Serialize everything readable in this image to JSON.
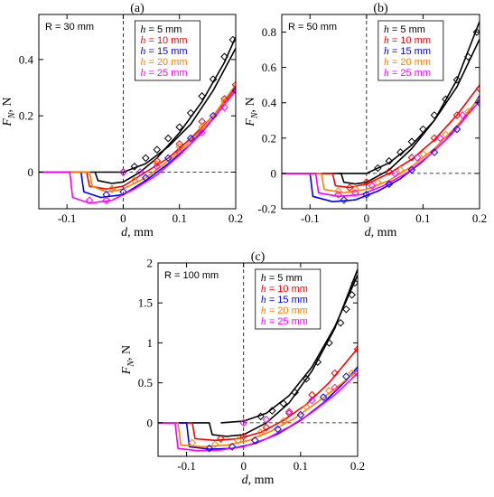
{
  "figure": {
    "width": 547,
    "height": 550
  },
  "x_axis": {
    "label_main": "d",
    "label_rest": ", mm",
    "ticks": [
      -0.1,
      0,
      0.1,
      0.2
    ],
    "tick_labels": [
      "-0.1",
      "0",
      "0.1",
      "0.2"
    ]
  },
  "y_axis": {
    "label_main": "F",
    "label_sub": "N",
    "label_rest": ", N"
  },
  "legend_entries": [
    {
      "var": "h",
      "text": " = 5 mm",
      "color": "#000000"
    },
    {
      "var": "h",
      "text": " = 10 mm",
      "color": "#ff0000"
    },
    {
      "var": "h",
      "text": " = 15 mm",
      "color": "#0000ff"
    },
    {
      "var": "h",
      "text": " = 20 mm",
      "color": "#ff8000"
    },
    {
      "var": "h",
      "text": " = 25 mm",
      "color": "#ff00ff"
    }
  ],
  "chart_data": [
    {
      "type": "line",
      "panel": "(a)",
      "annotation": "R = 30 mm",
      "xlim": [
        -0.15,
        0.2
      ],
      "ylim": [
        -0.13,
        0.56
      ],
      "yticks": [
        0,
        0.2,
        0.4
      ],
      "ytick_labels": [
        "0",
        "0.2",
        "0.4"
      ],
      "series": [
        {
          "name": "h = 5 mm",
          "color": "#000000",
          "kind": "model",
          "x": [
            -0.15,
            -0.05,
            -0.045,
            -0.02,
            0.0,
            0.03,
            0.06,
            0.1,
            0.14,
            0.18,
            0.2
          ],
          "y": [
            0,
            0,
            -0.03,
            -0.04,
            -0.035,
            0.0,
            0.05,
            0.14,
            0.25,
            0.39,
            0.48
          ]
        },
        {
          "name": "h = 5 mm",
          "color": "#000000",
          "kind": "model",
          "x": [
            -0.05,
            -0.02,
            0.0,
            0.04,
            0.08,
            0.12,
            0.16,
            0.2
          ],
          "y": [
            0,
            0,
            0.0,
            0.03,
            0.09,
            0.17,
            0.29,
            0.44
          ]
        },
        {
          "name": "h = 10 mm",
          "color": "#ff0000",
          "kind": "model",
          "x": [
            -0.15,
            -0.065,
            -0.06,
            -0.03,
            0.0,
            0.04,
            0.08,
            0.12,
            0.16,
            0.2
          ],
          "y": [
            0,
            0,
            -0.05,
            -0.06,
            -0.05,
            0.0,
            0.05,
            0.12,
            0.2,
            0.3
          ]
        },
        {
          "name": "h = 15 mm",
          "color": "#0000ff",
          "kind": "model",
          "x": [
            -0.15,
            -0.075,
            -0.07,
            -0.04,
            0.0,
            0.04,
            0.08,
            0.12,
            0.16,
            0.2
          ],
          "y": [
            0,
            0,
            -0.07,
            -0.09,
            -0.08,
            -0.03,
            0.03,
            0.1,
            0.19,
            0.29
          ]
        },
        {
          "name": "h = 20 mm",
          "color": "#ff8000",
          "kind": "model",
          "x": [
            -0.15,
            -0.06,
            -0.055,
            -0.03,
            0.0,
            0.04,
            0.08,
            0.12,
            0.16,
            0.2
          ],
          "y": [
            0,
            0,
            -0.05,
            -0.07,
            -0.06,
            -0.02,
            0.04,
            0.11,
            0.2,
            0.31
          ]
        },
        {
          "name": "h = 25 mm",
          "color": "#ff00ff",
          "kind": "model",
          "x": [
            -0.15,
            -0.095,
            -0.09,
            -0.06,
            -0.02,
            0.02,
            0.06,
            0.1,
            0.14,
            0.18,
            0.2
          ],
          "y": [
            0,
            0,
            -0.09,
            -0.11,
            -0.1,
            -0.06,
            -0.01,
            0.06,
            0.14,
            0.24,
            0.29
          ]
        },
        {
          "name": "h = 5 mm",
          "color": "#000000",
          "kind": "data",
          "x": [
            0.0,
            0.02,
            0.04,
            0.06,
            0.08,
            0.1,
            0.12,
            0.14,
            0.16,
            0.18,
            0.195
          ],
          "y": [
            0.0,
            0.02,
            0.05,
            0.08,
            0.12,
            0.16,
            0.21,
            0.27,
            0.33,
            0.41,
            0.47
          ]
        },
        {
          "name": "h = 10 mm",
          "color": "#ff0000",
          "kind": "data",
          "x": [
            -0.02,
            0.02,
            0.06,
            0.1,
            0.14,
            0.18,
            0.2
          ],
          "y": [
            -0.06,
            -0.03,
            0.04,
            0.1,
            0.18,
            0.26,
            0.31
          ]
        },
        {
          "name": "h = 15 mm",
          "color": "#0000ff",
          "kind": "data",
          "x": [
            -0.03,
            0.0,
            0.04,
            0.08,
            0.12,
            0.16,
            0.2
          ],
          "y": [
            -0.08,
            -0.07,
            -0.02,
            0.05,
            0.12,
            0.2,
            0.29
          ]
        },
        {
          "name": "h = 20 mm",
          "color": "#ff8000",
          "kind": "data",
          "x": [
            -0.02,
            0.02,
            0.06,
            0.1,
            0.14,
            0.18
          ],
          "y": [
            -0.06,
            -0.03,
            0.03,
            0.09,
            0.16,
            0.25
          ]
        },
        {
          "name": "h = 25 mm",
          "color": "#ff00ff",
          "kind": "data",
          "x": [
            -0.06,
            -0.03,
            0.0,
            0.03,
            0.06,
            0.1,
            0.14,
            0.18
          ],
          "y": [
            -0.1,
            -0.1,
            0.0,
            0.0,
            0.02,
            0.07,
            0.14,
            0.23
          ]
        }
      ]
    },
    {
      "type": "line",
      "panel": "(b)",
      "annotation": "R = 50 mm",
      "xlim": [
        -0.15,
        0.2
      ],
      "ylim": [
        -0.2,
        0.9
      ],
      "yticks": [
        -0.2,
        0,
        0.2,
        0.4,
        0.6,
        0.8
      ],
      "ytick_labels": [
        "-0.2",
        "0",
        "0.2",
        "0.4",
        "0.6",
        "0.8"
      ],
      "series": [
        {
          "name": "h = 5 mm",
          "color": "#000000",
          "kind": "model",
          "x": [
            -0.15,
            -0.045,
            -0.04,
            -0.02,
            0.0,
            0.04,
            0.08,
            0.12,
            0.16,
            0.2
          ],
          "y": [
            0,
            0,
            -0.05,
            -0.06,
            -0.05,
            0.02,
            0.14,
            0.3,
            0.53,
            0.86
          ]
        },
        {
          "name": "h = 5 mm",
          "color": "#000000",
          "kind": "model",
          "x": [
            -0.05,
            0.0,
            0.04,
            0.08,
            0.12,
            0.16,
            0.2
          ],
          "y": [
            0,
            0.0,
            0.06,
            0.16,
            0.3,
            0.49,
            0.76
          ]
        },
        {
          "name": "h = 10 mm",
          "color": "#ff0000",
          "kind": "model",
          "x": [
            -0.15,
            -0.06,
            -0.055,
            -0.03,
            0.0,
            0.04,
            0.08,
            0.12,
            0.16,
            0.2
          ],
          "y": [
            0,
            0,
            -0.07,
            -0.08,
            -0.06,
            0.0,
            0.08,
            0.19,
            0.33,
            0.5
          ]
        },
        {
          "name": "h = 15 mm",
          "color": "#0000ff",
          "kind": "model",
          "x": [
            -0.15,
            -0.1,
            -0.095,
            -0.06,
            -0.02,
            0.02,
            0.06,
            0.1,
            0.14,
            0.18,
            0.2
          ],
          "y": [
            0,
            0,
            -0.13,
            -0.16,
            -0.15,
            -0.1,
            -0.03,
            0.07,
            0.19,
            0.34,
            0.44
          ]
        },
        {
          "name": "h = 20 mm",
          "color": "#ff8000",
          "kind": "model",
          "x": [
            -0.15,
            -0.08,
            -0.075,
            -0.04,
            0.0,
            0.04,
            0.08,
            0.12,
            0.16,
            0.2
          ],
          "y": [
            0,
            0,
            -0.09,
            -0.11,
            -0.09,
            -0.04,
            0.04,
            0.14,
            0.27,
            0.43
          ]
        },
        {
          "name": "h = 25 mm",
          "color": "#ff00ff",
          "kind": "model",
          "x": [
            -0.15,
            -0.09,
            -0.085,
            -0.05,
            -0.01,
            0.03,
            0.07,
            0.11,
            0.15,
            0.2
          ],
          "y": [
            0,
            0,
            -0.11,
            -0.13,
            -0.12,
            -0.07,
            0.0,
            0.1,
            0.22,
            0.41
          ]
        },
        {
          "name": "h = 5 mm",
          "color": "#000000",
          "kind": "data",
          "x": [
            0.02,
            0.04,
            0.06,
            0.08,
            0.1,
            0.12,
            0.14,
            0.16,
            0.18,
            0.195
          ],
          "y": [
            0.03,
            0.07,
            0.12,
            0.18,
            0.25,
            0.33,
            0.42,
            0.53,
            0.66,
            0.8
          ]
        },
        {
          "name": "h = 10 mm",
          "color": "#ff0000",
          "kind": "data",
          "x": [
            -0.03,
            0.0,
            0.04,
            0.08,
            0.12,
            0.16,
            0.2
          ],
          "y": [
            -0.08,
            -0.05,
            0.01,
            0.09,
            0.2,
            0.33,
            0.48
          ]
        },
        {
          "name": "h = 15 mm",
          "color": "#0000ff",
          "kind": "data",
          "x": [
            -0.04,
            0.0,
            0.04,
            0.08,
            0.12,
            0.16,
            0.2
          ],
          "y": [
            -0.15,
            -0.12,
            -0.06,
            0.02,
            0.12,
            0.25,
            0.4
          ]
        },
        {
          "name": "h = 20 mm",
          "color": "#ff8000",
          "kind": "data",
          "x": [
            -0.05,
            -0.02,
            0.02,
            0.06,
            0.1,
            0.14,
            0.18
          ],
          "y": [
            -0.1,
            -0.09,
            -0.05,
            0.02,
            0.11,
            0.22,
            0.35
          ]
        },
        {
          "name": "h = 25 mm",
          "color": "#ff00ff",
          "kind": "data",
          "x": [
            -0.05,
            -0.02,
            0.01,
            0.05,
            0.09,
            0.13,
            0.17
          ],
          "y": [
            -0.12,
            -0.11,
            -0.07,
            0.0,
            0.09,
            0.2,
            0.33
          ]
        }
      ]
    },
    {
      "type": "line",
      "panel": "(c)",
      "annotation": "R = 100 mm",
      "xlim": [
        -0.15,
        0.2
      ],
      "ylim": [
        -0.42,
        2.0
      ],
      "yticks": [
        0,
        0.5,
        1,
        1.5,
        2
      ],
      "ytick_labels": [
        "0",
        "0.5",
        "1",
        "1.5",
        "2"
      ],
      "series": [
        {
          "name": "h = 5 mm",
          "color": "#000000",
          "kind": "model",
          "x": [
            -0.15,
            -0.06,
            -0.055,
            -0.03,
            0.0,
            0.04,
            0.08,
            0.12,
            0.16,
            0.2
          ],
          "y": [
            0,
            0,
            -0.15,
            -0.17,
            -0.15,
            0.0,
            0.25,
            0.65,
            1.18,
            1.92
          ]
        },
        {
          "name": "h = 5 mm",
          "color": "#000000",
          "kind": "model",
          "x": [
            -0.04,
            0.0,
            0.04,
            0.08,
            0.12,
            0.16,
            0.2
          ],
          "y": [
            0,
            0.02,
            0.12,
            0.34,
            0.7,
            1.2,
            1.85
          ]
        },
        {
          "name": "h = 10 mm",
          "color": "#ff0000",
          "kind": "model",
          "x": [
            -0.15,
            -0.09,
            -0.085,
            -0.05,
            -0.01,
            0.03,
            0.07,
            0.11,
            0.15,
            0.2
          ],
          "y": [
            0,
            0,
            -0.2,
            -0.22,
            -0.2,
            -0.12,
            0.03,
            0.23,
            0.5,
            0.93
          ]
        },
        {
          "name": "h = 15 mm",
          "color": "#0000ff",
          "kind": "model",
          "x": [
            -0.15,
            -0.1,
            -0.095,
            -0.06,
            -0.02,
            0.02,
            0.06,
            0.1,
            0.14,
            0.18,
            0.2
          ],
          "y": [
            0,
            0,
            -0.3,
            -0.33,
            -0.32,
            -0.26,
            -0.14,
            0.03,
            0.25,
            0.53,
            0.7
          ]
        },
        {
          "name": "h = 20 mm",
          "color": "#ff8000",
          "kind": "model",
          "x": [
            -0.15,
            -0.115,
            -0.11,
            -0.07,
            -0.03,
            0.01,
            0.05,
            0.09,
            0.13,
            0.17,
            0.2
          ],
          "y": [
            0,
            0,
            -0.28,
            -0.3,
            -0.28,
            -0.22,
            -0.1,
            0.06,
            0.26,
            0.48,
            0.66
          ]
        },
        {
          "name": "h = 25 mm",
          "color": "#ff00ff",
          "kind": "model",
          "x": [
            -0.15,
            -0.12,
            -0.115,
            -0.08,
            -0.04,
            0.0,
            0.04,
            0.08,
            0.12,
            0.16,
            0.2
          ],
          "y": [
            0,
            0,
            -0.32,
            -0.35,
            -0.34,
            -0.3,
            -0.2,
            -0.05,
            0.13,
            0.35,
            0.62
          ]
        },
        {
          "name": "h = 5 mm",
          "color": "#000000",
          "kind": "data",
          "x": [
            0.03,
            0.05,
            0.07,
            0.09,
            0.11,
            0.13,
            0.15,
            0.17,
            0.18,
            0.19,
            0.195
          ],
          "y": [
            0.08,
            0.15,
            0.24,
            0.38,
            0.55,
            0.76,
            1.0,
            1.25,
            1.42,
            1.6,
            1.75
          ]
        },
        {
          "name": "h = 10 mm",
          "color": "#ff0000",
          "kind": "data",
          "x": [
            -0.04,
            0.0,
            0.04,
            0.08,
            0.12,
            0.16,
            0.2
          ],
          "y": [
            -0.2,
            -0.17,
            -0.06,
            0.12,
            0.35,
            0.62,
            0.92
          ]
        },
        {
          "name": "h = 15 mm",
          "color": "#0000ff",
          "kind": "data",
          "x": [
            -0.06,
            -0.02,
            0.02,
            0.06,
            0.1,
            0.14,
            0.18
          ],
          "y": [
            -0.32,
            -0.3,
            -0.22,
            -0.08,
            0.1,
            0.32,
            0.58
          ]
        },
        {
          "name": "h = 20 mm",
          "color": "#ff8000",
          "kind": "data",
          "x": [
            -0.09,
            -0.05,
            -0.01,
            0.03,
            0.07,
            0.11,
            0.15,
            0.19
          ],
          "y": [
            -0.25,
            -0.27,
            -0.22,
            -0.12,
            0.02,
            0.2,
            0.4,
            0.62
          ]
        },
        {
          "name": "h = 25 mm",
          "color": "#ff00ff",
          "kind": "data",
          "x": [
            0.0,
            0.04,
            0.08,
            0.12,
            0.16,
            0.2
          ],
          "y": [
            0.0,
            0.04,
            0.14,
            0.28,
            0.44,
            0.62
          ]
        }
      ]
    }
  ]
}
